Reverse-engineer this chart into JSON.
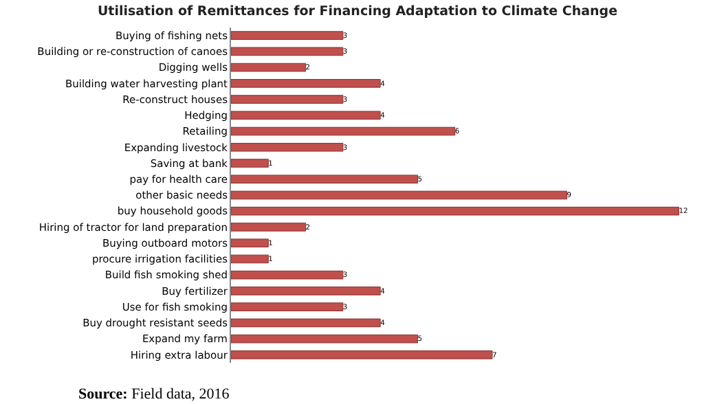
{
  "chart_data": {
    "type": "bar",
    "orientation": "horizontal",
    "title": "Utilisation of Remittances for Financing Adaptation to Climate Change",
    "categories": [
      "Buying of fishing nets",
      "Building or re-construction of canoes",
      "Digging wells",
      "Building water harvesting plant",
      "Re-construct houses",
      "Hedging",
      "Retailing",
      "Expanding livestock",
      "Saving at bank",
      "pay for health care",
      "other basic needs",
      "buy household goods",
      "Hiring of tractor for land preparation",
      "Buying outboard motors",
      "procure irrigation facilities",
      "Build fish smoking shed",
      "Buy fertilizer",
      "Use for fish smoking",
      "Buy drought resistant seeds",
      "Expand my farm",
      "Hiring extra labour"
    ],
    "values": [
      3,
      3,
      2,
      4,
      3,
      4,
      6,
      3,
      1,
      5,
      9,
      12,
      2,
      1,
      1,
      3,
      4,
      3,
      4,
      5,
      7
    ],
    "color": "#c0504d",
    "data_labels": true,
    "grid": false,
    "legend": false,
    "annotations": [
      "Source: Field data, 2016"
    ]
  }
}
